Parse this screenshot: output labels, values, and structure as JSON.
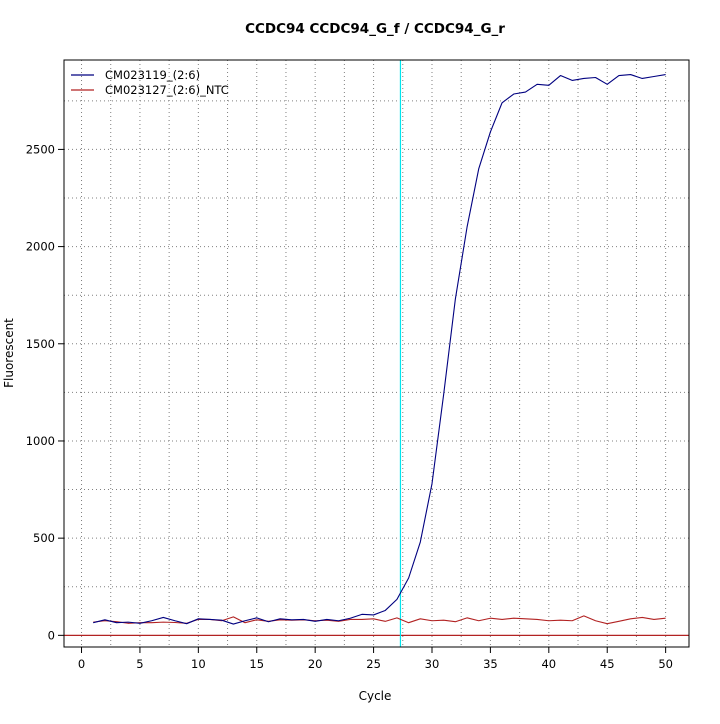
{
  "chart_data": {
    "type": "line",
    "title": "CCDC94  CCDC94_G_f / CCDC94_G_r",
    "xlabel": "Cycle",
    "ylabel": "Fluorescent",
    "xlim": [
      -1.5,
      52
    ],
    "ylim": [
      -60,
      2960
    ],
    "x_ticks": [
      0,
      5,
      10,
      15,
      20,
      25,
      30,
      35,
      40,
      45,
      50
    ],
    "y_ticks": [
      0,
      500,
      1000,
      1500,
      2000,
      2500
    ],
    "x_grid": [
      2.5,
      7.5,
      12.5,
      17.5,
      22.5,
      27.5,
      32.5,
      37.5,
      42.5,
      47.5
    ],
    "y_grid": [
      250,
      500,
      750,
      1000,
      1250,
      1500,
      1750,
      2000,
      2250,
      2500,
      2750
    ],
    "grid": true,
    "legend_position": "top-left",
    "threshold": {
      "x": 27.3,
      "color": "#00e5ee"
    },
    "baseline": {
      "y": 0,
      "color": "#b22222"
    },
    "x": [
      1,
      2,
      3,
      4,
      5,
      6,
      7,
      8,
      9,
      10,
      11,
      12,
      13,
      14,
      15,
      16,
      17,
      18,
      19,
      20,
      21,
      22,
      23,
      24,
      25,
      26,
      27,
      28,
      29,
      30,
      31,
      32,
      33,
      34,
      35,
      36,
      37,
      38,
      39,
      40,
      41,
      42,
      43,
      44,
      45,
      46,
      47,
      48,
      49,
      50
    ],
    "series": [
      {
        "name": "CM023119_(2:6)",
        "color": "#000080",
        "values": [
          65,
          80,
          65,
          68,
          62,
          75,
          92,
          75,
          60,
          85,
          82,
          78,
          58,
          75,
          90,
          70,
          85,
          80,
          82,
          72,
          82,
          75,
          88,
          108,
          105,
          128,
          185,
          295,
          480,
          780,
          1240,
          1730,
          2100,
          2400,
          2590,
          2740,
          2785,
          2795,
          2835,
          2830,
          2880,
          2855,
          2865,
          2870,
          2835,
          2880,
          2885,
          2865,
          2875,
          2885
        ]
      },
      {
        "name": "CM023127_(2:6)_NTC",
        "color": "#b22222",
        "values": [
          68,
          75,
          70,
          62,
          65,
          65,
          68,
          66,
          62,
          82,
          82,
          75,
          95,
          65,
          80,
          72,
          80,
          78,
          80,
          75,
          78,
          72,
          82,
          82,
          85,
          72,
          90,
          65,
          85,
          75,
          78,
          70,
          90,
          75,
          88,
          82,
          88,
          85,
          82,
          75,
          78,
          75,
          100,
          75,
          60,
          72,
          85,
          92,
          82,
          88
        ]
      }
    ]
  }
}
